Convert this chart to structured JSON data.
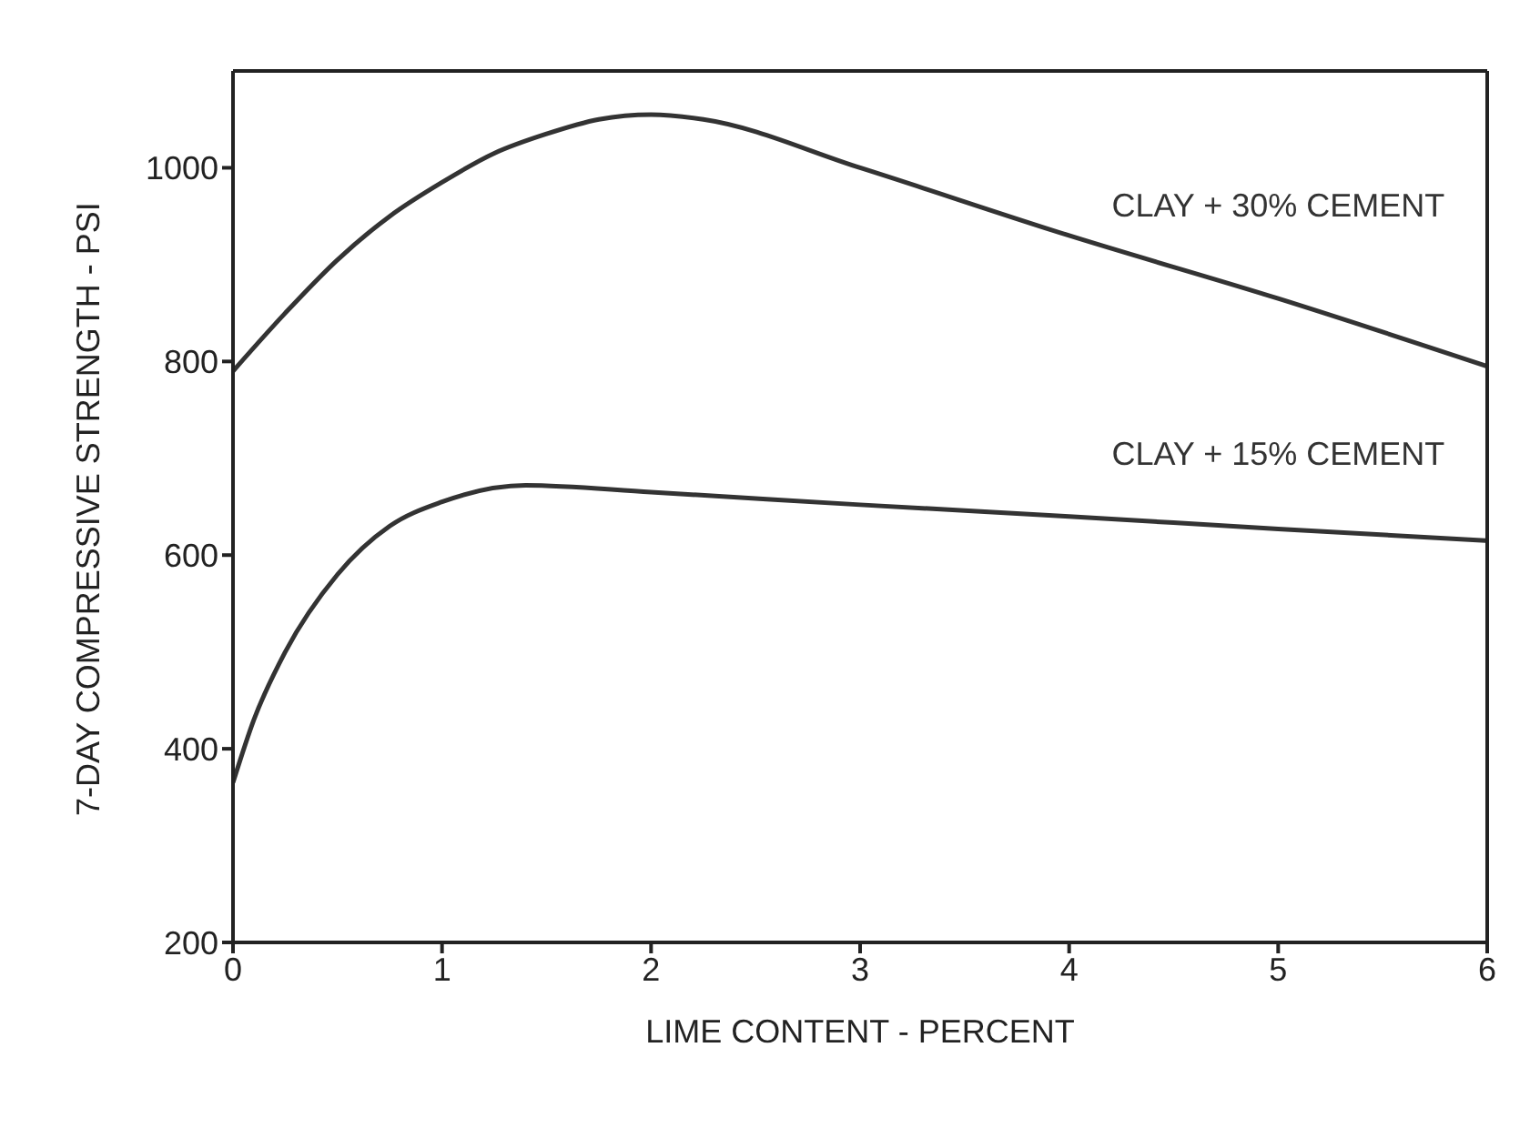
{
  "chart_data": {
    "type": "line",
    "xlabel": "LIME CONTENT - PERCENT",
    "ylabel": "7-DAY COMPRESSIVE STRENGTH - PSI",
    "xlim": [
      0,
      6
    ],
    "xticks": [
      0,
      1,
      2,
      3,
      4,
      5,
      6
    ],
    "ylim": [
      200,
      1100
    ],
    "yticks": [
      200,
      400,
      600,
      800,
      1000
    ],
    "grid": false,
    "legend": false,
    "marker": "none",
    "line_style": "solid",
    "series": [
      {
        "name": "CLAY + 30% CEMENT",
        "color": "#333333",
        "x": [
          0,
          0.25,
          0.5,
          0.75,
          1,
          1.25,
          1.5,
          1.75,
          2,
          2.25,
          3,
          4,
          5,
          6
        ],
        "values": [
          790,
          850,
          905,
          950,
          985,
          1015,
          1035,
          1050,
          1055,
          1050,
          1000,
          930,
          865,
          795
        ]
      },
      {
        "name": "CLAY + 15% CEMENT",
        "color": "#333333",
        "x": [
          0,
          0.1,
          0.25,
          0.5,
          0.75,
          1,
          1.4,
          2,
          3,
          4,
          5,
          6
        ],
        "values": [
          365,
          430,
          500,
          580,
          630,
          655,
          672,
          665,
          652,
          640,
          627,
          615
        ]
      }
    ]
  }
}
